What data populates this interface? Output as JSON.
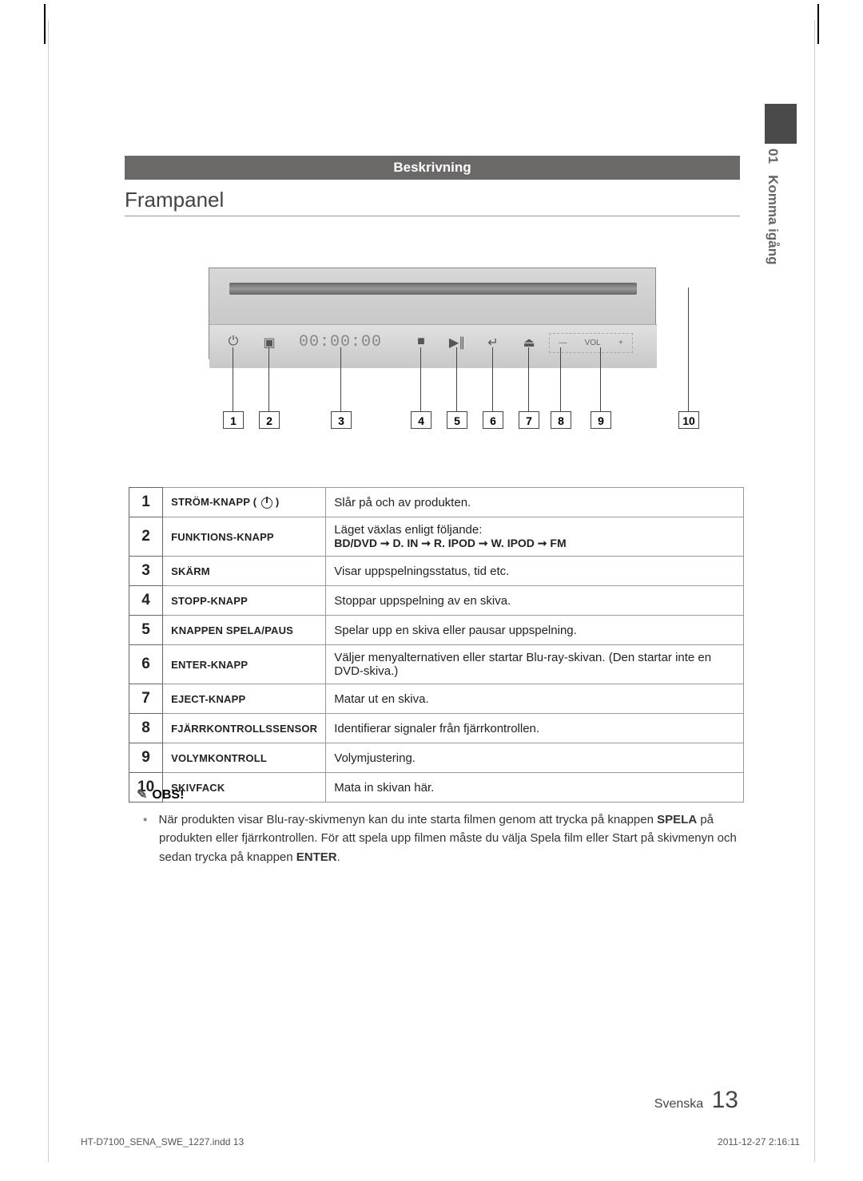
{
  "tab": {
    "number": "01",
    "label": "Komma igång"
  },
  "banner": "Beskrivning",
  "section": "Frampanel",
  "device": {
    "display": "00:00:00",
    "vol_minus": "—",
    "vol_label": "VOL",
    "vol_plus": "+"
  },
  "callouts": [
    "1",
    "2",
    "3",
    "4",
    "5",
    "6",
    "7",
    "8",
    "9",
    "10"
  ],
  "rows": [
    {
      "n": "1",
      "name": "STRÖM-KNAPP ( ",
      "name_suffix": " )",
      "has_power_icon": true,
      "desc": "Slår på och av produkten."
    },
    {
      "n": "2",
      "name": "FUNKTIONS-KNAPP",
      "desc": "Läget växlas enligt följande:",
      "desc2": "BD/DVD ➞ D. IN ➞ R. IPOD ➞ W. IPOD ➞ FM"
    },
    {
      "n": "3",
      "name": "SKÄRM",
      "desc": "Visar uppspelningsstatus, tid etc."
    },
    {
      "n": "4",
      "name": "STOPP-KNAPP",
      "desc": "Stoppar uppspelning av en skiva."
    },
    {
      "n": "5",
      "name": "KNAPPEN SPELA/PAUS",
      "desc": "Spelar upp en skiva eller pausar uppspelning."
    },
    {
      "n": "6",
      "name": "ENTER-KNAPP",
      "desc": "Väljer menyalternativen eller startar Blu-ray-skivan. (Den startar inte en DVD-skiva.)"
    },
    {
      "n": "7",
      "name": "EJECT-KNAPP",
      "desc": "Matar ut en skiva."
    },
    {
      "n": "8",
      "name": "FJÄRRKONTROLLSSENSOR",
      "desc": "Identifierar signaler från fjärrkontrollen."
    },
    {
      "n": "9",
      "name": "VOLYMKONTROLL",
      "desc": "Volymjustering."
    },
    {
      "n": "10",
      "name": "SKIVFACK",
      "desc": "Mata in skivan här."
    }
  ],
  "note": {
    "heading": "OBS!",
    "text_pre": "När produkten visar Blu-ray-skivmenyn kan du inte starta filmen genom att trycka på knappen ",
    "bold1": "SPELA",
    "text_mid": " på produkten eller fjärrkontrollen. För att spela upp filmen måste du välja Spela film eller Start på skivmenyn och sedan trycka på knappen ",
    "bold2": "ENTER",
    "text_post": "."
  },
  "page": {
    "lang": "Svenska",
    "num": "13"
  },
  "footer": {
    "left": "HT-D7100_SENA_SWE_1227.indd   13",
    "right": "2011-12-27     2:16:11"
  },
  "colors": {
    "banner": "#6b6868",
    "tab": "#4a4a4a",
    "border": "#999999"
  }
}
